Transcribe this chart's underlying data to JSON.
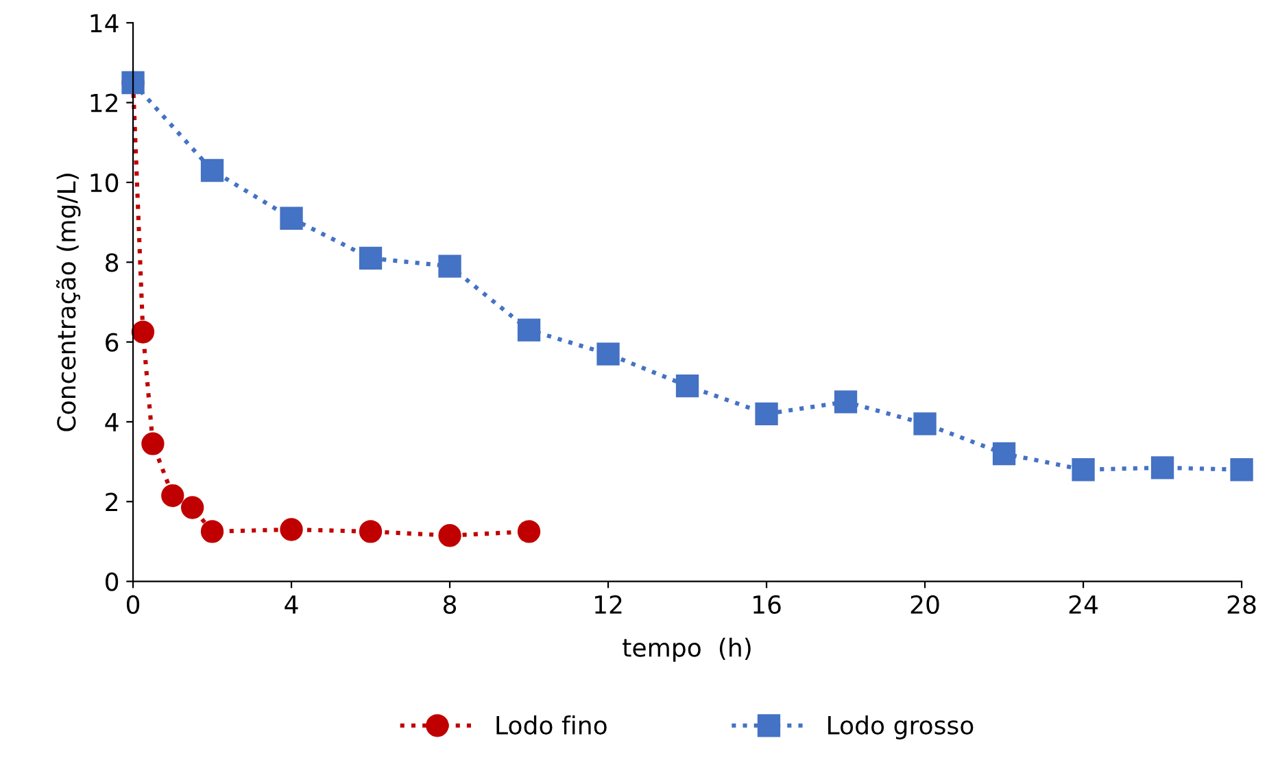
{
  "chart_data": {
    "type": "line",
    "xlabel": "tempo  (h)",
    "ylabel": "Concentração (mg/L)",
    "xlim": [
      0,
      28
    ],
    "xticks": [
      0,
      4,
      8,
      12,
      16,
      20,
      24,
      28
    ],
    "ylim": [
      0,
      14
    ],
    "yticks": [
      0,
      2,
      4,
      6,
      8,
      10,
      12,
      14
    ],
    "grid": false,
    "legend": "bottom",
    "line_style": "dotted",
    "series": [
      {
        "name": "Lodo fino",
        "color": "#c00000",
        "marker": "circle",
        "x": [
          0,
          0.25,
          0.5,
          1,
          1.5,
          2,
          4,
          6,
          8,
          10
        ],
        "values": [
          12.5,
          6.25,
          3.45,
          2.15,
          1.85,
          1.25,
          1.3,
          1.25,
          1.15,
          1.25
        ]
      },
      {
        "name": "Lodo grosso",
        "color": "#4472c4",
        "marker": "square",
        "x": [
          0,
          2,
          4,
          6,
          8,
          10,
          12,
          14,
          16,
          18,
          20,
          22,
          24,
          26,
          28
        ],
        "values": [
          12.5,
          10.3,
          9.1,
          8.1,
          7.9,
          6.3,
          5.7,
          4.9,
          4.2,
          4.5,
          3.95,
          3.2,
          2.8,
          2.85,
          2.8
        ]
      }
    ]
  }
}
